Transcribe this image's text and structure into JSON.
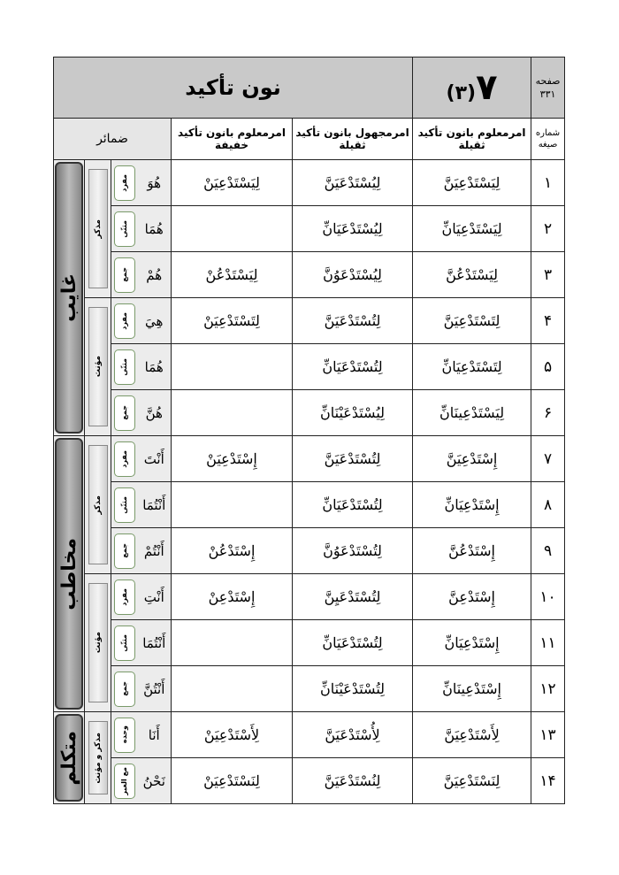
{
  "header": {
    "title": "نون تأكيد",
    "lesson": "٧",
    "part": "(٣)",
    "page_label": "صفحه",
    "page_number": "۳۳۱"
  },
  "columns": {
    "number": "شماره صیغه",
    "active_heavy": "امرمعلوم بانون تأکید ثقیلة",
    "passive_heavy": "امرمجهول بانون تأکید ثقیلة",
    "active_light": "امرمعلوم بانون تأکید خفیفة",
    "pronouns": "ضمائر"
  },
  "rows": [
    {
      "n": "۱",
      "a": "لِيَسْتَدْعِيَنَّ",
      "p": "لِيُسْتَدْعَيَنَّ",
      "l": "لِيَسْتَدْعِيَنْ",
      "pron": "هُوَ",
      "count": "مفرد"
    },
    {
      "n": "۲",
      "a": "لِيَسْتَدْعِيَانِّ",
      "p": "لِيُسْتَدْعَيَانِّ",
      "l": "",
      "pron": "هُمَا",
      "count": "مثنّی"
    },
    {
      "n": "۳",
      "a": "لِيَسْتَدْعُنَّ",
      "p": "لِيُسْتَدْعَوُنَّ",
      "l": "لِيَسْتَدْعُنْ",
      "pron": "هُمْ",
      "count": "جمع"
    },
    {
      "n": "۴",
      "a": "لِتَسْتَدْعِيَنَّ",
      "p": "لِتُسْتَدْعَيَنَّ",
      "l": "لِتَسْتَدْعِيَنْ",
      "pron": "هِيَ",
      "count": "مفرد"
    },
    {
      "n": "۵",
      "a": "لِتَسْتَدْعِيَانِّ",
      "p": "لِتُسْتَدْعَيَانِّ",
      "l": "",
      "pron": "هُمَا",
      "count": "مثنّی"
    },
    {
      "n": "۶",
      "a": "لِيَسْتَدْعِينَانِّ",
      "p": "لِيُسْتَدْعَيْنَانِّ",
      "l": "",
      "pron": "هُنَّ",
      "count": "جمع"
    },
    {
      "n": "۷",
      "a": "إِسْتَدْعِيَنَّ",
      "p": "لِتُسْتَدْعَيَنَّ",
      "l": "إِسْتَدْعِيَنْ",
      "pron": "أَنْتَ",
      "count": "مفرد"
    },
    {
      "n": "۸",
      "a": "إِسْتَدْعِيَانِّ",
      "p": "لِتُسْتَدْعَيَانِّ",
      "l": "",
      "pron": "أَنْتُمَا",
      "count": "مثنّی"
    },
    {
      "n": "۹",
      "a": "إِسْتَدْعُنَّ",
      "p": "لِتُسْتَدْعَوُنَّ",
      "l": "إِسْتَدْعُنْ",
      "pron": "أَنْتُمْ",
      "count": "جمع"
    },
    {
      "n": "۱۰",
      "a": "إِسْتَدْعِنَّ",
      "p": "لِتُسْتَدْعَيِنَّ",
      "l": "إِسْتَدْعِنْ",
      "pron": "أَنْتِ",
      "count": "مفرد"
    },
    {
      "n": "۱۱",
      "a": "إِسْتَدْعِيَانِّ",
      "p": "لِتُسْتَدْعَيَانِّ",
      "l": "",
      "pron": "أَنْتُمَا",
      "count": "مثنّی"
    },
    {
      "n": "۱۲",
      "a": "إِسْتَدْعِينَانِّ",
      "p": "لِتُسْتَدْعَيْنَانِّ",
      "l": "",
      "pron": "أَنْتُنَّ",
      "count": "جمع"
    },
    {
      "n": "۱۳",
      "a": "لِأَسْتَدْعِيَنَّ",
      "p": "لِأُسْتَدْعَيَنَّ",
      "l": "لِأَسْتَدْعِيَنْ",
      "pron": "أَنَا",
      "count": "وحده"
    },
    {
      "n": "۱۴",
      "a": "لِنَسْتَدْعِيَنَّ",
      "p": "لِنُسْتَدْعَيَنَّ",
      "l": "لِنَسْتَدْعِيَنْ",
      "pron": "نَحْنُ",
      "count": "مع الغیر"
    }
  ],
  "groups": {
    "persons": [
      {
        "label": "غایب",
        "start": 0,
        "span": 6
      },
      {
        "label": "مخاطب",
        "start": 6,
        "span": 6
      },
      {
        "label": "متکلم",
        "start": 12,
        "span": 2
      }
    ],
    "genders": [
      {
        "label": "مذکر",
        "start": 0,
        "span": 3
      },
      {
        "label": "مؤنث",
        "start": 3,
        "span": 3
      },
      {
        "label": "مذکر",
        "start": 6,
        "span": 3
      },
      {
        "label": "مؤنث",
        "start": 9,
        "span": 3
      },
      {
        "label": "مذکر و مؤنث",
        "start": 12,
        "span": 2
      }
    ]
  }
}
